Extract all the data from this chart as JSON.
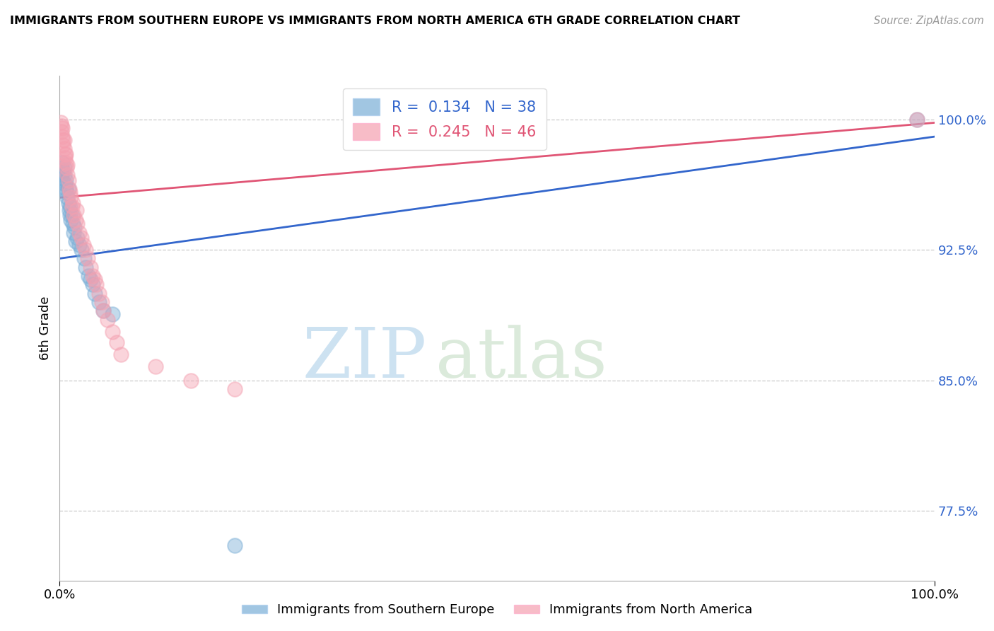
{
  "title": "IMMIGRANTS FROM SOUTHERN EUROPE VS IMMIGRANTS FROM NORTH AMERICA 6TH GRADE CORRELATION CHART",
  "source": "Source: ZipAtlas.com",
  "ylabel": "6th Grade",
  "y_ticks": [
    0.775,
    0.85,
    0.925,
    1.0
  ],
  "y_tick_labels": [
    "77.5%",
    "85.0%",
    "92.5%",
    "100.0%"
  ],
  "xlim": [
    0.0,
    1.0
  ],
  "ylim": [
    0.735,
    1.025
  ],
  "series1_label": "Immigrants from Southern Europe",
  "series2_label": "Immigrants from North America",
  "series1_color": "#7aaed6",
  "series2_color": "#f4a0b0",
  "series1_R": 0.134,
  "series1_N": 38,
  "series2_R": 0.245,
  "series2_N": 46,
  "series1_line_color": "#3366cc",
  "series2_line_color": "#e05575",
  "watermark_zip": "ZIP",
  "watermark_atlas": "atlas",
  "background_color": "#ffffff",
  "series1_x": [
    0.001,
    0.002,
    0.002,
    0.003,
    0.003,
    0.004,
    0.005,
    0.005,
    0.006,
    0.007,
    0.007,
    0.008,
    0.009,
    0.01,
    0.01,
    0.011,
    0.012,
    0.012,
    0.013,
    0.014,
    0.015,
    0.016,
    0.017,
    0.018,
    0.02,
    0.022,
    0.025,
    0.028,
    0.03,
    0.033,
    0.035,
    0.038,
    0.04,
    0.045,
    0.05,
    0.06,
    0.2,
    0.98
  ],
  "series1_y": [
    0.97,
    0.968,
    0.972,
    0.965,
    0.975,
    0.97,
    0.968,
    0.972,
    0.963,
    0.96,
    0.965,
    0.958,
    0.955,
    0.952,
    0.96,
    0.948,
    0.945,
    0.95,
    0.942,
    0.945,
    0.94,
    0.935,
    0.938,
    0.93,
    0.932,
    0.928,
    0.925,
    0.92,
    0.915,
    0.91,
    0.908,
    0.905,
    0.9,
    0.895,
    0.89,
    0.888,
    0.755,
    1.0
  ],
  "series2_x": [
    0.001,
    0.002,
    0.002,
    0.003,
    0.003,
    0.004,
    0.004,
    0.005,
    0.005,
    0.006,
    0.006,
    0.007,
    0.007,
    0.008,
    0.009,
    0.009,
    0.01,
    0.011,
    0.012,
    0.013,
    0.014,
    0.015,
    0.016,
    0.018,
    0.019,
    0.02,
    0.022,
    0.025,
    0.027,
    0.03,
    0.032,
    0.035,
    0.038,
    0.04,
    0.042,
    0.045,
    0.048,
    0.05,
    0.055,
    0.06,
    0.065,
    0.07,
    0.11,
    0.15,
    0.2,
    0.98
  ],
  "series2_y": [
    0.998,
    0.996,
    0.993,
    0.99,
    0.995,
    0.988,
    0.985,
    0.983,
    0.988,
    0.98,
    0.978,
    0.975,
    0.98,
    0.972,
    0.968,
    0.974,
    0.965,
    0.96,
    0.958,
    0.955,
    0.95,
    0.952,
    0.945,
    0.942,
    0.948,
    0.94,
    0.935,
    0.932,
    0.928,
    0.925,
    0.92,
    0.915,
    0.91,
    0.908,
    0.905,
    0.9,
    0.895,
    0.89,
    0.885,
    0.878,
    0.872,
    0.865,
    0.858,
    0.85,
    0.845,
    1.0
  ],
  "trendline1_x": [
    0.0,
    1.0
  ],
  "trendline1_y": [
    0.92,
    0.99
  ],
  "trendline2_x": [
    0.0,
    1.0
  ],
  "trendline2_y": [
    0.955,
    0.998
  ]
}
